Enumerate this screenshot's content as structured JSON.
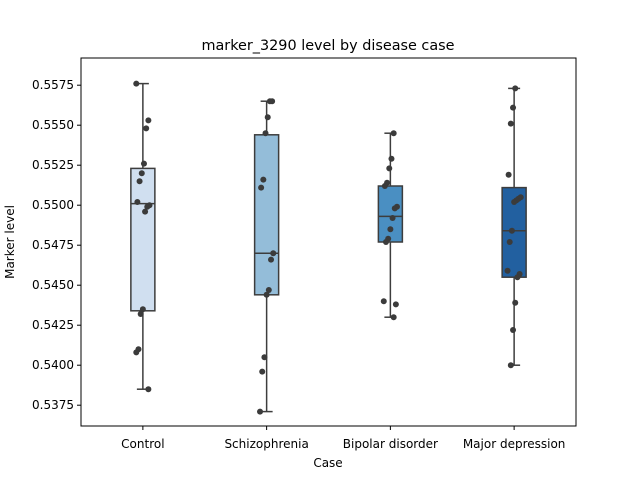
{
  "chart_data": {
    "type": "box",
    "title": "marker_3290 level by disease case",
    "xlabel": "Case",
    "ylabel": "Marker level",
    "ylim": [
      0.5362,
      0.5592
    ],
    "yticks": [
      "0.5375",
      "0.5400",
      "0.5425",
      "0.5450",
      "0.5475",
      "0.5500",
      "0.5525",
      "0.5550",
      "0.5575"
    ],
    "categories": [
      "Control",
      "Schizophrenia",
      "Bipolar disorder",
      "Major depression"
    ],
    "colors": [
      "#d0dff0",
      "#94bdd9",
      "#4a8fc2",
      "#2260a0"
    ],
    "boxes": [
      {
        "q1": 0.5434,
        "median": 0.5501,
        "q3": 0.5523,
        "whisker_low": 0.5385,
        "whisker_high": 0.5576
      },
      {
        "q1": 0.5444,
        "median": 0.547,
        "q3": 0.5544,
        "whisker_low": 0.5371,
        "whisker_high": 0.5565
      },
      {
        "q1": 0.5477,
        "median": 0.5493,
        "q3": 0.5512,
        "whisker_low": 0.543,
        "whisker_high": 0.5545
      },
      {
        "q1": 0.5455,
        "median": 0.5484,
        "q3": 0.5511,
        "whisker_low": 0.54,
        "whisker_high": 0.5573
      }
    ],
    "points": [
      {
        "category": "Control",
        "values": [
          0.5576,
          0.5553,
          0.5548,
          0.5526,
          0.552,
          0.5515,
          0.5502,
          0.55,
          0.5499,
          0.5496,
          0.5435,
          0.5432,
          0.541,
          0.5408,
          0.5385
        ]
      },
      {
        "category": "Schizophrenia",
        "values": [
          0.5565,
          0.5565,
          0.5555,
          0.5545,
          0.5516,
          0.5511,
          0.547,
          0.5466,
          0.5447,
          0.5444,
          0.5405,
          0.5396,
          0.5371
        ]
      },
      {
        "category": "Bipolar disorder",
        "values": [
          0.5545,
          0.5529,
          0.5523,
          0.5514,
          0.5512,
          0.5499,
          0.5498,
          0.5492,
          0.5485,
          0.5479,
          0.5477,
          0.544,
          0.5438,
          0.543
        ]
      },
      {
        "category": "Major depression",
        "values": [
          0.5573,
          0.5561,
          0.5551,
          0.5519,
          0.5505,
          0.5504,
          0.5503,
          0.5502,
          0.5484,
          0.5477,
          0.5459,
          0.5457,
          0.5455,
          0.5439,
          0.5422,
          0.54
        ]
      }
    ]
  }
}
